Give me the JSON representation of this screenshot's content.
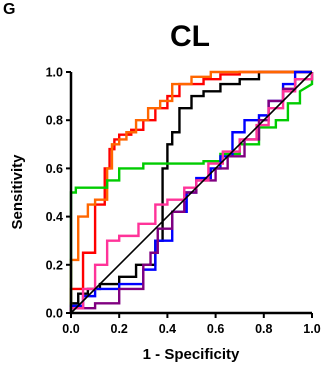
{
  "panel_letter": "G",
  "chart_data": {
    "type": "line",
    "title": "CL",
    "xlabel": "1 - Specificity",
    "ylabel": "Sensitivity",
    "xlim": [
      0,
      1
    ],
    "ylim": [
      0,
      1
    ],
    "xticks": [
      "0.0",
      "0.2",
      "0.4",
      "0.6",
      "0.8",
      "1.0"
    ],
    "yticks": [
      "0.0",
      "0.2",
      "0.4",
      "0.6",
      "0.8",
      "1.0"
    ],
    "grid": false,
    "legend": "none",
    "series": [
      {
        "color": "#000000",
        "points": [
          [
            0,
            0
          ],
          [
            0,
            0.04
          ],
          [
            0.03,
            0.04
          ],
          [
            0.03,
            0.08
          ],
          [
            0.07,
            0.08
          ],
          [
            0.07,
            0.1
          ],
          [
            0.12,
            0.1
          ],
          [
            0.12,
            0.12
          ],
          [
            0.2,
            0.12
          ],
          [
            0.2,
            0.15
          ],
          [
            0.27,
            0.15
          ],
          [
            0.27,
            0.2
          ],
          [
            0.35,
            0.2
          ],
          [
            0.35,
            0.3
          ],
          [
            0.38,
            0.3
          ],
          [
            0.38,
            0.6
          ],
          [
            0.4,
            0.6
          ],
          [
            0.4,
            0.7
          ],
          [
            0.42,
            0.7
          ],
          [
            0.42,
            0.75
          ],
          [
            0.45,
            0.75
          ],
          [
            0.45,
            0.85
          ],
          [
            0.5,
            0.85
          ],
          [
            0.5,
            0.9
          ],
          [
            0.55,
            0.9
          ],
          [
            0.55,
            0.92
          ],
          [
            0.62,
            0.92
          ],
          [
            0.62,
            0.95
          ],
          [
            0.7,
            0.95
          ],
          [
            0.7,
            0.97
          ],
          [
            0.78,
            0.97
          ],
          [
            0.78,
            1.0
          ],
          [
            1.0,
            1.0
          ]
        ]
      },
      {
        "color": "#ff0000",
        "points": [
          [
            0,
            0
          ],
          [
            0,
            0.1
          ],
          [
            0.05,
            0.1
          ],
          [
            0.05,
            0.25
          ],
          [
            0.1,
            0.25
          ],
          [
            0.1,
            0.45
          ],
          [
            0.14,
            0.45
          ],
          [
            0.14,
            0.6
          ],
          [
            0.16,
            0.6
          ],
          [
            0.16,
            0.68
          ],
          [
            0.18,
            0.68
          ],
          [
            0.18,
            0.72
          ],
          [
            0.2,
            0.72
          ],
          [
            0.2,
            0.74
          ],
          [
            0.25,
            0.74
          ],
          [
            0.25,
            0.76
          ],
          [
            0.3,
            0.76
          ],
          [
            0.3,
            0.8
          ],
          [
            0.35,
            0.8
          ],
          [
            0.35,
            0.85
          ],
          [
            0.4,
            0.85
          ],
          [
            0.4,
            0.9
          ],
          [
            0.45,
            0.9
          ],
          [
            0.45,
            0.95
          ],
          [
            0.55,
            0.95
          ],
          [
            0.55,
            0.97
          ],
          [
            0.62,
            0.97
          ],
          [
            0.62,
            0.99
          ],
          [
            0.7,
            0.99
          ],
          [
            0.7,
            1.0
          ],
          [
            1.0,
            1.0
          ]
        ]
      },
      {
        "color": "#ff6600",
        "points": [
          [
            0,
            0
          ],
          [
            0,
            0.22
          ],
          [
            0.03,
            0.22
          ],
          [
            0.03,
            0.4
          ],
          [
            0.07,
            0.4
          ],
          [
            0.07,
            0.45
          ],
          [
            0.1,
            0.45
          ],
          [
            0.1,
            0.47
          ],
          [
            0.15,
            0.47
          ],
          [
            0.15,
            0.6
          ],
          [
            0.17,
            0.6
          ],
          [
            0.17,
            0.7
          ],
          [
            0.2,
            0.7
          ],
          [
            0.2,
            0.72
          ],
          [
            0.23,
            0.72
          ],
          [
            0.23,
            0.75
          ],
          [
            0.27,
            0.75
          ],
          [
            0.27,
            0.8
          ],
          [
            0.32,
            0.8
          ],
          [
            0.32,
            0.85
          ],
          [
            0.37,
            0.85
          ],
          [
            0.37,
            0.88
          ],
          [
            0.42,
            0.88
          ],
          [
            0.42,
            0.95
          ],
          [
            0.5,
            0.95
          ],
          [
            0.5,
            0.98
          ],
          [
            0.58,
            0.98
          ],
          [
            0.58,
            1.0
          ],
          [
            1.0,
            1.0
          ]
        ]
      },
      {
        "color": "#00cc00",
        "points": [
          [
            0,
            0
          ],
          [
            0,
            0.5
          ],
          [
            0.02,
            0.5
          ],
          [
            0.02,
            0.52
          ],
          [
            0.15,
            0.52
          ],
          [
            0.15,
            0.55
          ],
          [
            0.2,
            0.55
          ],
          [
            0.2,
            0.6
          ],
          [
            0.3,
            0.6
          ],
          [
            0.3,
            0.62
          ],
          [
            0.55,
            0.62
          ],
          [
            0.55,
            0.63
          ],
          [
            0.62,
            0.63
          ],
          [
            0.62,
            0.66
          ],
          [
            0.7,
            0.66
          ],
          [
            0.7,
            0.7
          ],
          [
            0.78,
            0.7
          ],
          [
            0.78,
            0.77
          ],
          [
            0.85,
            0.77
          ],
          [
            0.85,
            0.8
          ],
          [
            0.9,
            0.8
          ],
          [
            0.9,
            0.87
          ],
          [
            0.95,
            0.87
          ],
          [
            0.95,
            0.92
          ],
          [
            1.0,
            0.95
          ],
          [
            1.0,
            1.0
          ]
        ]
      },
      {
        "color": "#0000ff",
        "points": [
          [
            0,
            0
          ],
          [
            0,
            0.03
          ],
          [
            0.05,
            0.03
          ],
          [
            0.05,
            0.07
          ],
          [
            0.1,
            0.07
          ],
          [
            0.1,
            0.1
          ],
          [
            0.2,
            0.1
          ],
          [
            0.2,
            0.12
          ],
          [
            0.3,
            0.12
          ],
          [
            0.3,
            0.18
          ],
          [
            0.35,
            0.18
          ],
          [
            0.35,
            0.3
          ],
          [
            0.42,
            0.3
          ],
          [
            0.42,
            0.42
          ],
          [
            0.48,
            0.42
          ],
          [
            0.48,
            0.5
          ],
          [
            0.52,
            0.5
          ],
          [
            0.52,
            0.56
          ],
          [
            0.58,
            0.56
          ],
          [
            0.58,
            0.6
          ],
          [
            0.62,
            0.6
          ],
          [
            0.62,
            0.65
          ],
          [
            0.67,
            0.65
          ],
          [
            0.67,
            0.75
          ],
          [
            0.72,
            0.75
          ],
          [
            0.72,
            0.8
          ],
          [
            0.78,
            0.8
          ],
          [
            0.78,
            0.82
          ],
          [
            0.82,
            0.82
          ],
          [
            0.82,
            0.88
          ],
          [
            0.88,
            0.88
          ],
          [
            0.88,
            0.95
          ],
          [
            0.93,
            0.95
          ],
          [
            0.93,
            1.0
          ],
          [
            1.0,
            1.0
          ]
        ]
      },
      {
        "color": "#800080",
        "points": [
          [
            0,
            0
          ],
          [
            0,
            0.02
          ],
          [
            0.1,
            0.02
          ],
          [
            0.1,
            0.04
          ],
          [
            0.2,
            0.04
          ],
          [
            0.2,
            0.1
          ],
          [
            0.3,
            0.1
          ],
          [
            0.3,
            0.2
          ],
          [
            0.33,
            0.2
          ],
          [
            0.33,
            0.25
          ],
          [
            0.36,
            0.25
          ],
          [
            0.36,
            0.35
          ],
          [
            0.42,
            0.35
          ],
          [
            0.42,
            0.42
          ],
          [
            0.47,
            0.42
          ],
          [
            0.47,
            0.5
          ],
          [
            0.52,
            0.5
          ],
          [
            0.52,
            0.55
          ],
          [
            0.6,
            0.55
          ],
          [
            0.6,
            0.6
          ],
          [
            0.65,
            0.6
          ],
          [
            0.65,
            0.65
          ],
          [
            0.72,
            0.65
          ],
          [
            0.72,
            0.72
          ],
          [
            0.78,
            0.72
          ],
          [
            0.78,
            0.8
          ],
          [
            0.82,
            0.8
          ],
          [
            0.82,
            0.88
          ],
          [
            0.88,
            0.88
          ],
          [
            0.88,
            0.93
          ],
          [
            0.93,
            0.93
          ],
          [
            0.93,
            0.97
          ],
          [
            1.0,
            0.97
          ],
          [
            1.0,
            1.0
          ]
        ]
      },
      {
        "color": "#ff3399",
        "points": [
          [
            0,
            0
          ],
          [
            0,
            0.02
          ],
          [
            0.05,
            0.02
          ],
          [
            0.05,
            0.1
          ],
          [
            0.1,
            0.1
          ],
          [
            0.1,
            0.2
          ],
          [
            0.15,
            0.2
          ],
          [
            0.15,
            0.3
          ],
          [
            0.2,
            0.3
          ],
          [
            0.2,
            0.32
          ],
          [
            0.28,
            0.32
          ],
          [
            0.28,
            0.37
          ],
          [
            0.35,
            0.37
          ],
          [
            0.35,
            0.45
          ],
          [
            0.4,
            0.45
          ],
          [
            0.4,
            0.47
          ],
          [
            0.47,
            0.47
          ],
          [
            0.47,
            0.52
          ],
          [
            0.52,
            0.52
          ],
          [
            0.52,
            0.55
          ],
          [
            0.57,
            0.55
          ],
          [
            0.57,
            0.62
          ],
          [
            0.63,
            0.62
          ],
          [
            0.63,
            0.67
          ],
          [
            0.7,
            0.67
          ],
          [
            0.7,
            0.72
          ],
          [
            0.77,
            0.72
          ],
          [
            0.77,
            0.78
          ],
          [
            0.82,
            0.78
          ],
          [
            0.82,
            0.85
          ],
          [
            0.88,
            0.85
          ],
          [
            0.88,
            0.92
          ],
          [
            0.93,
            0.92
          ],
          [
            0.93,
            0.97
          ],
          [
            1.0,
            0.97
          ],
          [
            1.0,
            1.0
          ]
        ]
      },
      {
        "color": "#000000",
        "style": "diagonal",
        "points": [
          [
            0,
            0
          ],
          [
            1,
            1
          ]
        ]
      }
    ]
  }
}
